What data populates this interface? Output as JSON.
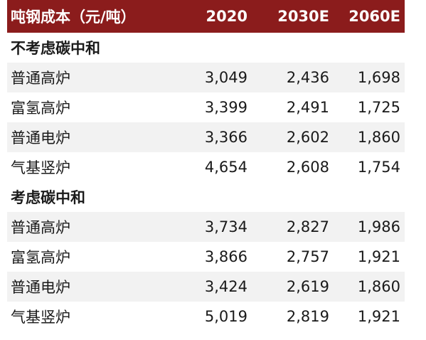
{
  "header": {
    "label": "吨钢成本（元/吨）",
    "years": [
      "2020",
      "2030E",
      "2060E"
    ]
  },
  "sections": [
    {
      "title": "不考虑碳中和",
      "rows": [
        {
          "name": "普通高炉",
          "values": [
            "3,049",
            "2,436",
            "1,698"
          ]
        },
        {
          "name": "富氢高炉",
          "values": [
            "3,399",
            "2,491",
            "1,725"
          ]
        },
        {
          "name": "普通电炉",
          "values": [
            "3,366",
            "2,602",
            "1,860"
          ]
        },
        {
          "name": "气基竖炉",
          "values": [
            "4,654",
            "2,608",
            "1,754"
          ]
        }
      ]
    },
    {
      "title": "考虑碳中和",
      "rows": [
        {
          "name": "普通高炉",
          "values": [
            "3,734",
            "2,827",
            "1,986"
          ]
        },
        {
          "name": "富氢高炉",
          "values": [
            "3,866",
            "2,757",
            "1,921"
          ]
        },
        {
          "name": "普通电炉",
          "values": [
            "3,424",
            "2,619",
            "1,860"
          ]
        },
        {
          "name": "气基竖炉",
          "values": [
            "5,019",
            "2,819",
            "1,921"
          ]
        }
      ]
    }
  ],
  "colors": {
    "header_bg": "#8b1c1c",
    "row_shade": "#f2f2f2"
  }
}
